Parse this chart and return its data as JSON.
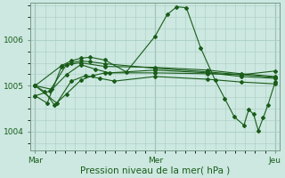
{
  "title": "",
  "xlabel": "Pression niveau de la mer( hPa )",
  "background_color": "#cce8e0",
  "grid_color": "#aaccc4",
  "line_color": "#1a5c1a",
  "marker_color": "#1a5c1a",
  "ylim": [
    1003.6,
    1006.8
  ],
  "yticks": [
    1004,
    1005,
    1006
  ],
  "xtick_labels": [
    "Mar",
    "Mer",
    "Jeu"
  ],
  "xtick_positions": [
    0.0,
    0.5,
    1.0
  ],
  "vline_positions": [
    0.0,
    0.5,
    1.0
  ],
  "series": [
    [
      0.0,
      1005.0,
      0.04,
      1004.87,
      0.08,
      1004.58,
      0.13,
      1004.82,
      0.19,
      1005.12,
      0.24,
      1005.22,
      0.29,
      1005.28,
      0.5,
      1005.28,
      0.72,
      1005.26,
      0.86,
      1005.24,
      1.0,
      1005.32
    ],
    [
      0.0,
      1004.78,
      0.05,
      1004.62,
      0.11,
      1005.42,
      0.15,
      1005.5,
      0.19,
      1005.54,
      0.23,
      1005.52,
      0.29,
      1005.48,
      0.5,
      1005.38,
      0.72,
      1005.3,
      0.86,
      1005.24,
      1.0,
      1005.18
    ],
    [
      0.0,
      1005.0,
      0.11,
      1005.44,
      0.15,
      1005.54,
      0.19,
      1005.6,
      0.23,
      1005.62,
      0.29,
      1005.56,
      0.38,
      1005.3,
      0.5,
      1006.08,
      0.55,
      1006.55,
      0.59,
      1006.72,
      0.63,
      1006.7,
      0.69,
      1005.82,
      0.75,
      1005.12,
      0.79,
      1004.72,
      0.83,
      1004.32,
      0.87,
      1004.14,
      0.89,
      1004.48,
      0.91,
      1004.38,
      0.93,
      1004.02,
      0.95,
      1004.3,
      0.97,
      1004.58,
      1.0,
      1005.08
    ],
    [
      0.0,
      1005.0,
      0.07,
      1004.92,
      0.13,
      1005.24,
      0.19,
      1005.46,
      0.25,
      1005.36,
      0.31,
      1005.28,
      0.5,
      1005.34,
      0.72,
      1005.28,
      0.86,
      1005.2,
      1.0,
      1005.16
    ],
    [
      0.0,
      1005.0,
      0.09,
      1004.62,
      0.15,
      1005.1,
      0.21,
      1005.22,
      0.27,
      1005.16,
      0.33,
      1005.1,
      0.5,
      1005.2,
      0.72,
      1005.14,
      0.86,
      1005.08,
      1.0,
      1005.04
    ],
    [
      0.0,
      1004.78,
      0.06,
      1004.88,
      0.13,
      1005.46,
      0.19,
      1005.5,
      0.29,
      1005.42,
      0.5,
      1005.4,
      0.72,
      1005.34,
      0.86,
      1005.26,
      1.0,
      1005.2
    ]
  ]
}
